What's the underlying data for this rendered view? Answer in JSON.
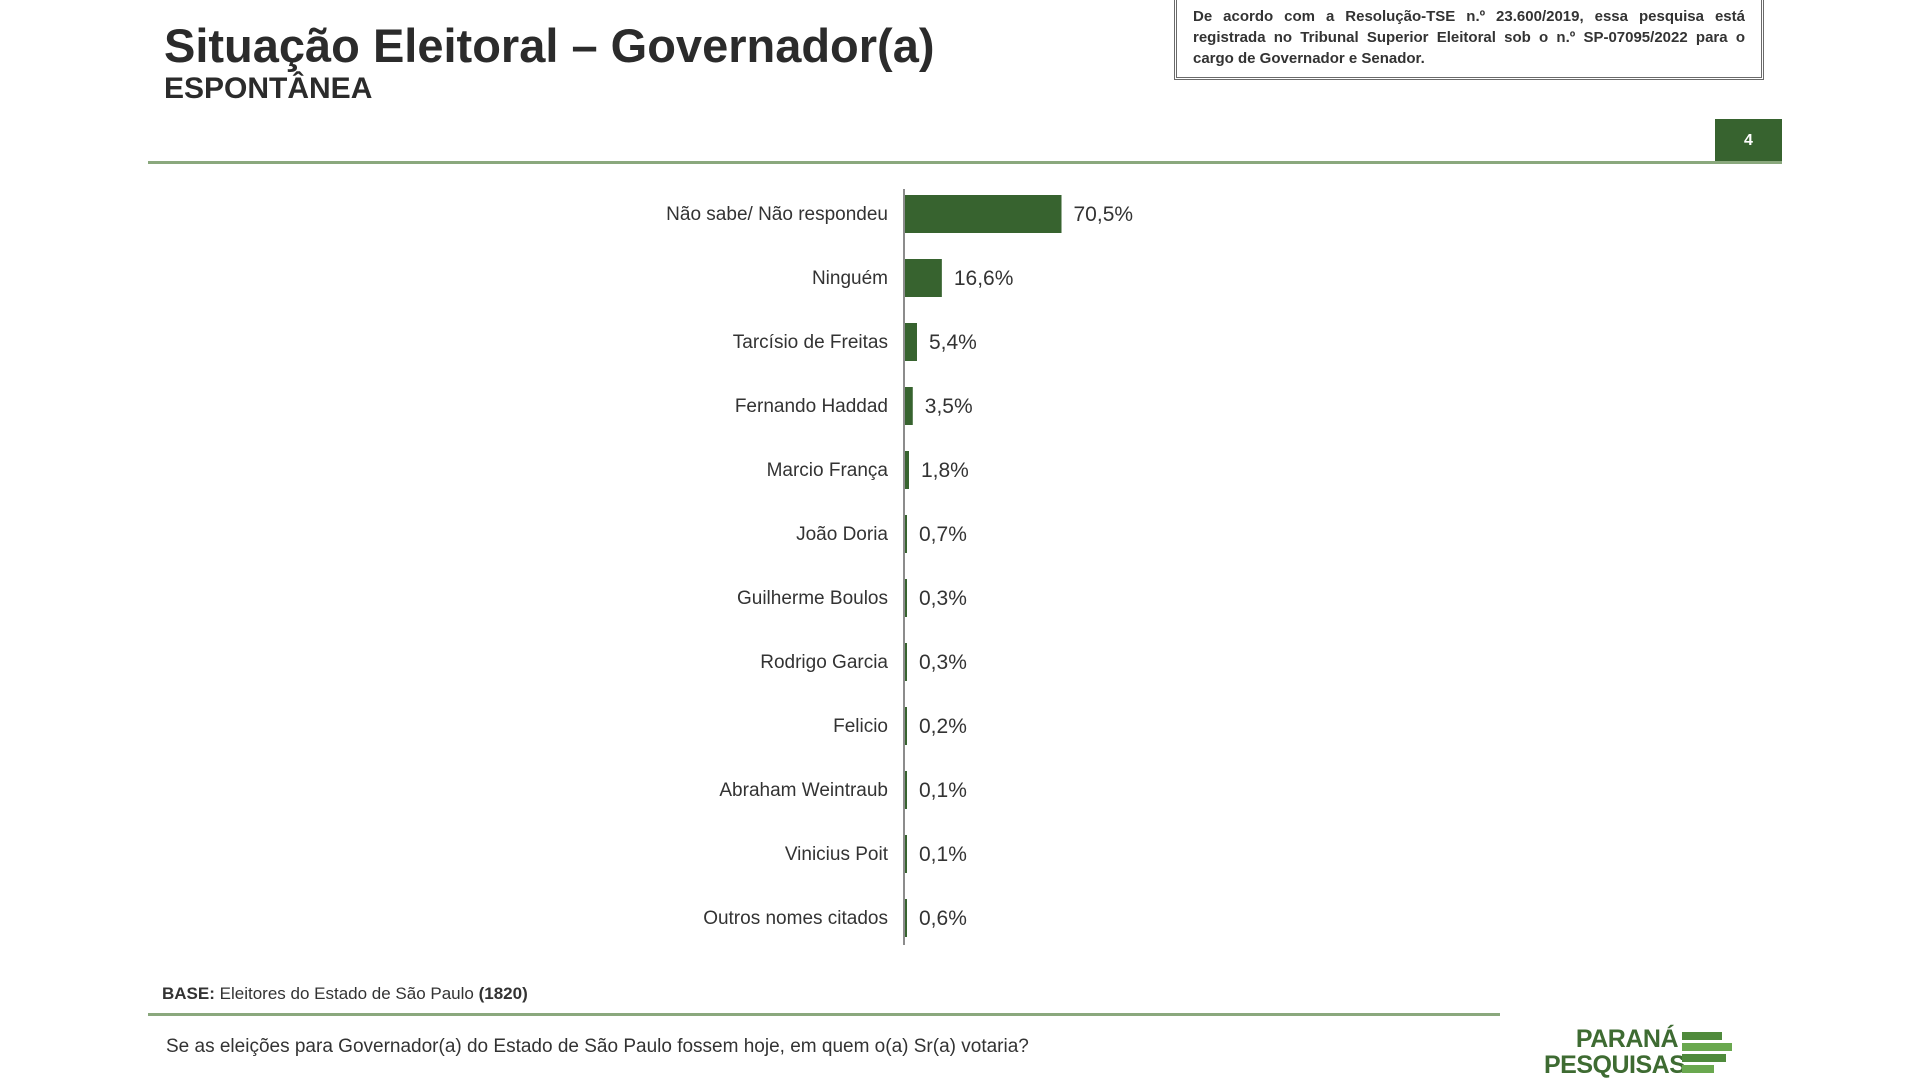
{
  "header": {
    "title": "Situação Eleitoral – Governador(a)",
    "subtitle": "ESPONTÂNEA",
    "notice_line1": "De acordo com a Resolução-TSE n.º 23.600/2019, essa pesquisa está registrada no Tribunal Superior Eleitoral sob o n.º ",
    "notice_registration": "SP-07095/2022",
    "notice_line2": " para o cargo de Governador e Senador.",
    "page_number": "4"
  },
  "footer": {
    "base_label": "BASE:",
    "base_text": " Eleitores do Estado de São Paulo ",
    "base_count": "(1820)",
    "question": "Se as eleições para Governador(a) do Estado de São Paulo fossem hoje, em quem o(a) Sr(a) votaria?",
    "logo_line1": "PARANÁ",
    "logo_line2": "PESQUISAS"
  },
  "colors": {
    "bar": "#37632f",
    "accent_rule": "#8aa87d",
    "page_badge": "#37632f"
  },
  "chart_data": {
    "type": "bar",
    "orientation": "horizontal",
    "categories": [
      "Não sabe/ Não respondeu",
      "Ninguém",
      "Tarcísio de Freitas",
      "Fernando Haddad",
      "Marcio França",
      "João Doria",
      "Guilherme Boulos",
      "Rodrigo Garcia",
      "Felicio",
      "Abraham Weintraub",
      "Vinicius Poit",
      "Outros nomes citados"
    ],
    "values": [
      70.5,
      16.6,
      5.4,
      3.5,
      1.8,
      0.7,
      0.3,
      0.3,
      0.2,
      0.1,
      0.1,
      0.6
    ],
    "value_labels": [
      "70,5%",
      "16,6%",
      "5,4%",
      "3,5%",
      "1,8%",
      "0,7%",
      "0,3%",
      "0,3%",
      "0,2%",
      "0,1%",
      "0,1%",
      "0,6%"
    ],
    "unit": "%",
    "xlim": [
      0,
      100
    ],
    "grid": false,
    "legend": "none"
  }
}
